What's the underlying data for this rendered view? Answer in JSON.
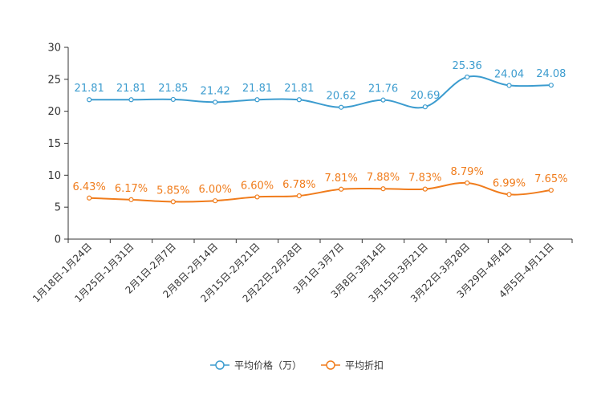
{
  "chart_data": {
    "type": "line",
    "title": "",
    "xlabel": "",
    "ylabel": "",
    "ylim": [
      0,
      30
    ],
    "yticks": [
      0,
      5,
      10,
      15,
      20,
      25,
      30
    ],
    "grid": false,
    "legend_position": "bottom-center",
    "categories": [
      "1月18日-1月24日",
      "1月25日-1月31日",
      "2月1日-2月7日",
      "2月8日-2月14日",
      "2月15日-2月21日",
      "2月22日-2月28日",
      "3月1日-3月7日",
      "3月8日-3月14日",
      "3月15日-3月21日",
      "3月22日-3月28日",
      "3月29日-4月4日",
      "4月5日-4月11日"
    ],
    "series": [
      {
        "name": "平均价格（万）",
        "color": "#3c9ccf",
        "values": [
          21.81,
          21.81,
          21.85,
          21.42,
          21.81,
          21.81,
          20.62,
          21.76,
          20.69,
          25.36,
          24.04,
          24.08
        ],
        "labels": [
          "21.81",
          "21.81",
          "21.85",
          "21.42",
          "21.81",
          "21.81",
          "20.62",
          "21.76",
          "20.69",
          "25.36",
          "24.04",
          "24.08"
        ]
      },
      {
        "name": "平均折扣",
        "color": "#f07c1c",
        "values": [
          6.43,
          6.17,
          5.85,
          6.0,
          6.6,
          6.78,
          7.81,
          7.88,
          7.83,
          8.79,
          6.99,
          7.65
        ],
        "labels": [
          "6.43%",
          "6.17%",
          "5.85%",
          "6.00%",
          "6.60%",
          "6.78%",
          "7.81%",
          "7.88%",
          "7.83%",
          "8.79%",
          "6.99%",
          "7.65%"
        ]
      }
    ]
  }
}
